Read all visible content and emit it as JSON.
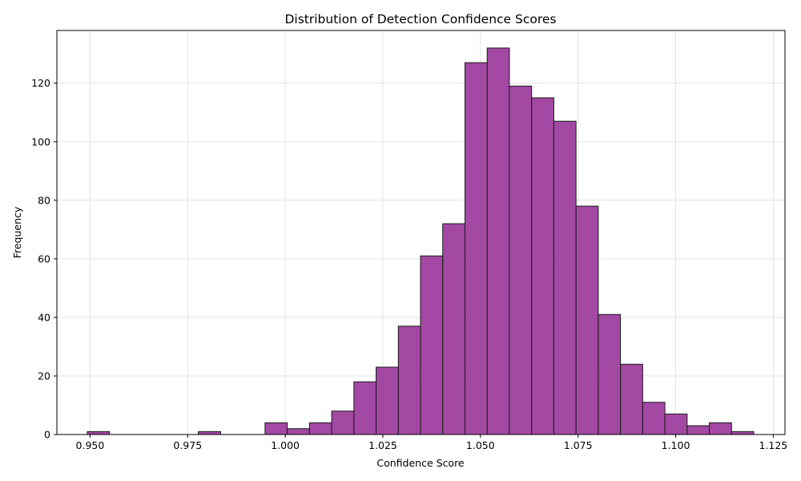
{
  "chart_data": {
    "type": "bar",
    "title": "Distribution of Detection Confidence Scores",
    "xlabel": "Confidence Score",
    "ylabel": "Frequency",
    "xlim": [
      0.9415,
      1.128
    ],
    "ylim": [
      0,
      138
    ],
    "grid": true,
    "bar_color": "#9b3a9b",
    "edge_color": "#1a1a1a",
    "bins": {
      "start": 0.9493,
      "width": 0.00569,
      "counts": [
        1,
        0,
        0,
        0,
        0,
        1,
        0,
        0,
        4,
        2,
        4,
        8,
        18,
        23,
        37,
        61,
        72,
        127,
        132,
        119,
        115,
        107,
        78,
        41,
        24,
        11,
        7,
        3,
        4,
        1
      ]
    },
    "x_ticks": [
      {
        "value": 0.95,
        "label": "0.950"
      },
      {
        "value": 0.975,
        "label": "0.975"
      },
      {
        "value": 1.0,
        "label": "1.000"
      },
      {
        "value": 1.025,
        "label": "1.025"
      },
      {
        "value": 1.05,
        "label": "1.050"
      },
      {
        "value": 1.075,
        "label": "1.075"
      },
      {
        "value": 1.1,
        "label": "1.100"
      },
      {
        "value": 1.125,
        "label": "1.125"
      }
    ],
    "y_ticks": [
      {
        "value": 0,
        "label": "0"
      },
      {
        "value": 20,
        "label": "20"
      },
      {
        "value": 40,
        "label": "40"
      },
      {
        "value": 60,
        "label": "60"
      },
      {
        "value": 80,
        "label": "80"
      },
      {
        "value": 100,
        "label": "100"
      },
      {
        "value": 120,
        "label": "120"
      }
    ]
  }
}
